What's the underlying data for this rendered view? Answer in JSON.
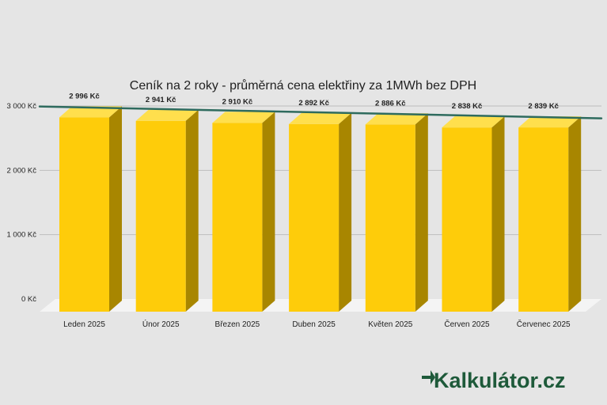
{
  "chart_data": {
    "type": "bar",
    "title": "Ceník na 2 roky - průměrná cena elektřiny za 1MWh bez DPH",
    "categories": [
      "Leden 2025",
      "Únor 2025",
      "Březen 2025",
      "Duben 2025",
      "Květen 2025",
      "Červen 2025",
      "Červenec 2025"
    ],
    "values": [
      2996,
      2941,
      2910,
      2892,
      2886,
      2838,
      2839
    ],
    "data_labels": [
      "2 996 Kč",
      "2 941 Kč",
      "2 910 Kč",
      "2 892 Kč",
      "2 886 Kč",
      "2 838 Kč",
      "2 839 Kč"
    ],
    "y_ticks": [
      0,
      1000,
      2000,
      3000
    ],
    "y_tick_labels": [
      "0 Kč",
      "1 000 Kč",
      "2 000 Kč",
      "3 000 Kč"
    ],
    "ylim": [
      0,
      3000
    ],
    "xlabel": "",
    "ylabel": "",
    "grid": true,
    "style": "3d-bar",
    "trendline": {
      "type": "linear",
      "color": "#2e6b5e"
    },
    "colors": {
      "bar_front": "#fecc0a",
      "bar_top": "#ffdf4d",
      "bar_side": "#a88600",
      "floor": "#f4f4f4",
      "grid": "#bdbdbd"
    }
  },
  "logo": {
    "text": "Kalkulátor.cz",
    "color": "#1e5a3a"
  }
}
